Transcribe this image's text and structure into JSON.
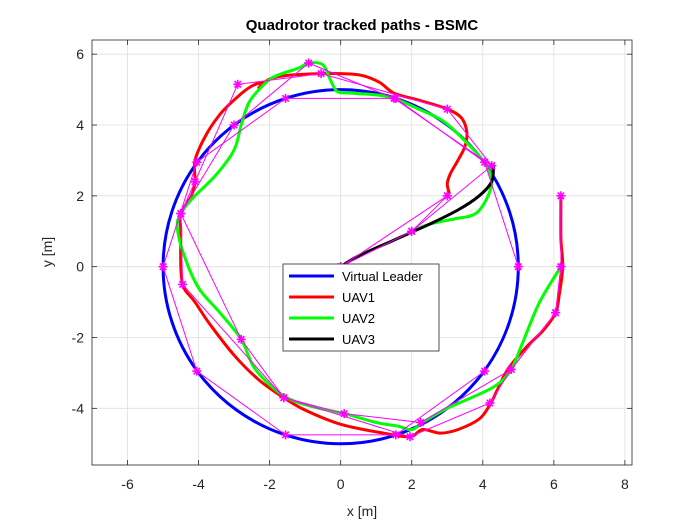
{
  "chart_data": {
    "type": "line",
    "title": "Quadrotor tracked paths - BSMC",
    "xlabel": "x [m]",
    "ylabel": "y [m]",
    "xlim": [
      -7,
      8.2
    ],
    "ylim": [
      -5.6,
      6.4
    ],
    "xticks": [
      -6,
      -4,
      -2,
      0,
      2,
      4,
      6,
      8
    ],
    "yticks": [
      -4,
      -2,
      0,
      2,
      4,
      6
    ],
    "grid": true,
    "legend_position": "center",
    "series": [
      {
        "name": "Virtual Leader",
        "color": "#0000ff",
        "closed": true,
        "points": [
          [
            5,
            0
          ],
          [
            4.755,
            1.545
          ],
          [
            4.045,
            2.939
          ],
          [
            2.939,
            4.045
          ],
          [
            1.545,
            4.755
          ],
          [
            0,
            5
          ],
          [
            -1.545,
            4.755
          ],
          [
            -2.939,
            4.045
          ],
          [
            -4.045,
            2.939
          ],
          [
            -4.755,
            1.545
          ],
          [
            -5,
            0
          ],
          [
            -4.755,
            -1.545
          ],
          [
            -4.045,
            -2.939
          ],
          [
            -2.939,
            -4.045
          ],
          [
            -1.545,
            -4.755
          ],
          [
            0,
            -5
          ],
          [
            1.545,
            -4.755
          ],
          [
            2.939,
            -4.045
          ],
          [
            4.045,
            -2.939
          ],
          [
            4.755,
            -1.545
          ],
          [
            5,
            0
          ]
        ]
      },
      {
        "name": "UAV1",
        "color": "#ff0000",
        "points": [
          [
            6.2,
            2.0
          ],
          [
            6.2,
            0.8
          ],
          [
            6.25,
            0
          ],
          [
            6.15,
            -0.8
          ],
          [
            6.05,
            -1.3
          ],
          [
            5.7,
            -1.8
          ],
          [
            5.2,
            -2.3
          ],
          [
            4.7,
            -2.9
          ],
          [
            4.4,
            -3.5
          ],
          [
            4.2,
            -3.9
          ],
          [
            3.9,
            -4.3
          ],
          [
            3.3,
            -4.6
          ],
          [
            2.8,
            -4.7
          ],
          [
            2.3,
            -4.6
          ],
          [
            1.95,
            -4.8
          ],
          [
            1.2,
            -4.7
          ],
          [
            0,
            -4.45
          ],
          [
            -1,
            -4.05
          ],
          [
            -1.6,
            -3.7
          ],
          [
            -2.3,
            -3.2
          ],
          [
            -3,
            -2.5
          ],
          [
            -3.7,
            -1.6
          ],
          [
            -4.1,
            -1.0
          ],
          [
            -4.35,
            -0.7
          ],
          [
            -4.45,
            -0.5
          ],
          [
            -4.5,
            0
          ],
          [
            -4.5,
            1
          ],
          [
            -4.5,
            1.5
          ],
          [
            -4.2,
            2.0
          ],
          [
            -4.1,
            2.4
          ],
          [
            -4.1,
            3.0
          ],
          [
            -3.8,
            3.7
          ],
          [
            -3.4,
            4.3
          ],
          [
            -2.9,
            4.8
          ],
          [
            -2.5,
            5.1
          ],
          [
            -2.2,
            5.2
          ],
          [
            -2.3,
            5.05
          ],
          [
            -2.0,
            5.3
          ],
          [
            -1.5,
            5.4
          ],
          [
            -0.6,
            5.45
          ],
          [
            0,
            5.45
          ],
          [
            0.6,
            5.4
          ],
          [
            1.1,
            5.2
          ],
          [
            1.5,
            4.9
          ],
          [
            2.2,
            4.7
          ],
          [
            3.0,
            4.45
          ],
          [
            3.4,
            4.2
          ],
          [
            3.55,
            3.8
          ],
          [
            3.5,
            3.4
          ],
          [
            3.3,
            3.0
          ],
          [
            3.1,
            2.65
          ],
          [
            3.0,
            2.35
          ],
          [
            3.05,
            2.1
          ]
        ]
      },
      {
        "name": "UAV2",
        "color": "#00ff00",
        "points": [
          [
            6.2,
            0
          ],
          [
            5.6,
            -1.0
          ],
          [
            5.1,
            -2.2
          ],
          [
            4.8,
            -2.9
          ],
          [
            4.3,
            -3.4
          ],
          [
            3.0,
            -4.0
          ],
          [
            2.3,
            -4.4
          ],
          [
            2.0,
            -4.6
          ],
          [
            1.6,
            -4.5
          ],
          [
            1.0,
            -4.4
          ],
          [
            0.1,
            -4.15
          ],
          [
            -0.8,
            -3.95
          ],
          [
            -1.6,
            -3.65
          ],
          [
            -2.4,
            -2.9
          ],
          [
            -2.8,
            -2.05
          ],
          [
            -3.4,
            -1.3
          ],
          [
            -4.0,
            -0.6
          ],
          [
            -4.4,
            0.3
          ],
          [
            -4.6,
            1.1
          ],
          [
            -4.5,
            1.5
          ],
          [
            -4.2,
            1.9
          ],
          [
            -3.5,
            2.6
          ],
          [
            -3.0,
            3.3
          ],
          [
            -2.8,
            4.0
          ],
          [
            -2.6,
            4.6
          ],
          [
            -2.3,
            5.0
          ],
          [
            -1.9,
            5.35
          ],
          [
            -1.2,
            5.6
          ],
          [
            -0.9,
            5.75
          ],
          [
            -0.5,
            5.7
          ],
          [
            -0.3,
            5.3
          ],
          [
            -0.1,
            4.95
          ],
          [
            0.3,
            4.9
          ],
          [
            1.0,
            4.85
          ],
          [
            1.5,
            4.75
          ],
          [
            2.2,
            4.45
          ],
          [
            2.9,
            4.1
          ],
          [
            3.5,
            3.55
          ],
          [
            4.0,
            3.0
          ],
          [
            4.25,
            2.5
          ],
          [
            4.15,
            2.0
          ],
          [
            3.8,
            1.5
          ],
          [
            3.2,
            1.35
          ],
          [
            2.5,
            1.2
          ],
          [
            2.0,
            1.0
          ]
        ]
      },
      {
        "name": "UAV3",
        "color": "#000000",
        "points": [
          [
            0,
            0
          ],
          [
            0.5,
            0.3
          ],
          [
            1.5,
            0.75
          ],
          [
            2.5,
            1.2
          ],
          [
            3.3,
            1.6
          ],
          [
            3.9,
            2.0
          ],
          [
            4.25,
            2.4
          ],
          [
            4.3,
            2.85
          ]
        ]
      },
      {
        "name": "",
        "color": "#ff00ff",
        "markers": true,
        "segments": [
          [
            [
              6.2,
              2.0
            ],
            [
              6.2,
              0
            ],
            [
              6.05,
              -1.3
            ],
            [
              4.8,
              -2.9
            ],
            [
              4.2,
              -3.85
            ],
            [
              1.95,
              -4.8
            ],
            [
              -1.6,
              -3.7
            ],
            [
              -4.45,
              -0.5
            ],
            [
              -4.5,
              1.5
            ],
            [
              -4.1,
              2.4
            ],
            [
              -2.9,
              5.15
            ],
            [
              -0.55,
              5.45
            ],
            [
              3.0,
              4.45
            ],
            [
              4.25,
              2.85
            ]
          ],
          [
            [
              4.05,
              -2.95
            ],
            [
              1.55,
              -4.75
            ],
            [
              -1.55,
              -4.75
            ],
            [
              -4.05,
              -2.95
            ],
            [
              -5,
              0
            ],
            [
              -4.05,
              2.95
            ],
            [
              -1.55,
              4.75
            ],
            [
              1.55,
              4.75
            ],
            [
              4.05,
              2.95
            ],
            [
              5,
              0
            ]
          ],
          [
            [
              6.2,
              0
            ],
            [
              6.05,
              -1.3
            ],
            [
              4.8,
              -2.9
            ],
            [
              2.25,
              -4.4
            ],
            [
              0.1,
              -4.15
            ],
            [
              -1.6,
              -3.7
            ],
            [
              -2.8,
              -2.05
            ],
            [
              -4.5,
              1.5
            ],
            [
              -3.0,
              4.0
            ],
            [
              -0.9,
              5.75
            ],
            [
              1.5,
              4.75
            ],
            [
              4.25,
              2.85
            ],
            [
              2.0,
              1.0
            ],
            [
              0,
              0
            ]
          ],
          [
            [
              0,
              0
            ],
            [
              3.0,
              2.0
            ]
          ],
          [
            [
              3.0,
              2.0
            ],
            [
              2.0,
              1.0
            ]
          ]
        ]
      }
    ],
    "legend_entries": [
      "Virtual Leader",
      "UAV1",
      "UAV2",
      "UAV3"
    ]
  }
}
